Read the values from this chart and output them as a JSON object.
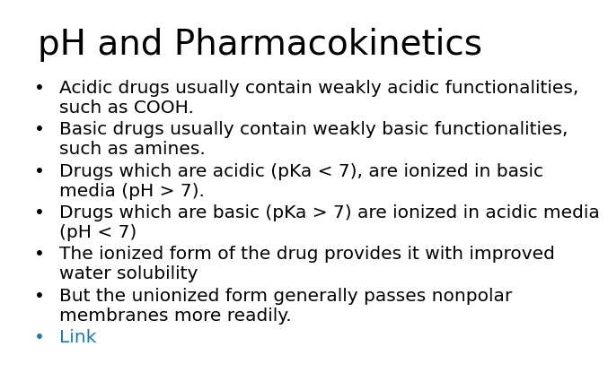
{
  "title": "pH and Pharmacokinetics",
  "title_fontsize": 28,
  "title_color": "#000000",
  "background_color": "#ffffff",
  "bullet_color": "#000000",
  "link_color": "#1a7ab5",
  "bullet_fontsize": 14.5,
  "bullets": [
    "Acidic drugs usually contain weakly acidic functionalities,\nsuch as COOH.",
    "Basic drugs usually contain weakly basic functionalities,\nsuch as amines.",
    "Drugs which are acidic (pKa < 7), are ionized in basic\nmedia (pH > 7).",
    "Drugs which are basic (pKa > 7) are ionized in acidic media\n(pH < 7)",
    "The ionized form of the drug provides it with improved\nwater solubility",
    "But the unionized form generally passes nonpolar\nmembranes more readily.",
    "Link"
  ],
  "bullet_is_link": [
    false,
    false,
    false,
    false,
    false,
    false,
    true
  ]
}
